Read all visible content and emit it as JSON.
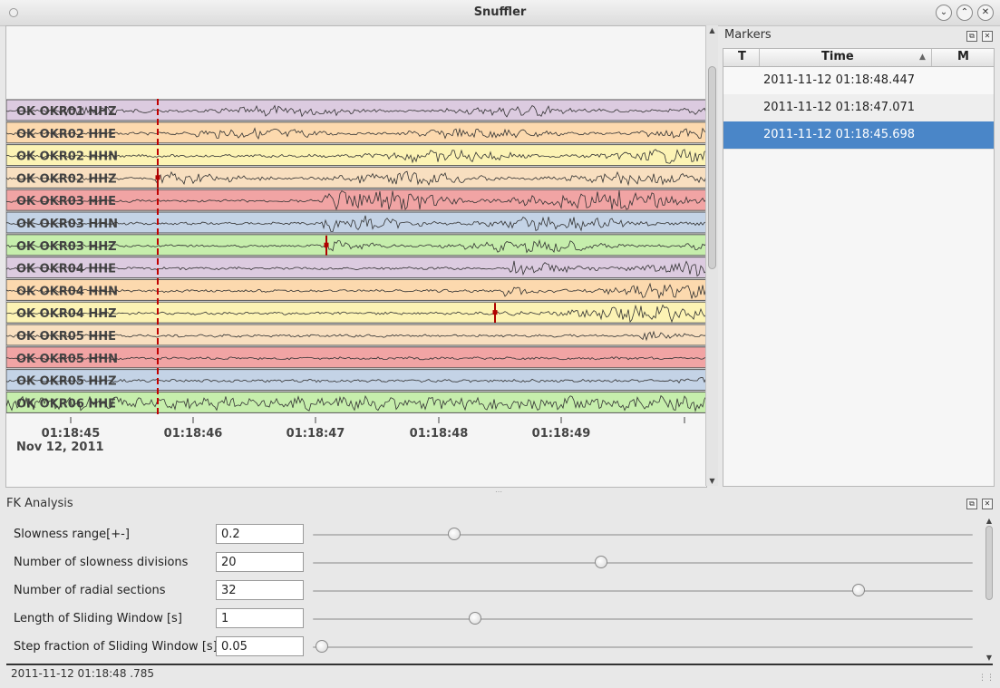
{
  "window": {
    "title": "Snuffler"
  },
  "traces": [
    {
      "label": "OK OKR01  HHZ",
      "color": "#dccbe0"
    },
    {
      "label": "OK OKR02  HHE",
      "color": "#fcd9ae"
    },
    {
      "label": "OK OKR02  HHN",
      "color": "#fcf3b4"
    },
    {
      "label": "OK OKR02  HHZ",
      "color": "#f8dfc0"
    },
    {
      "label": "OK OKR03  HHE",
      "color": "#f1a4a4"
    },
    {
      "label": "OK OKR03  HHN",
      "color": "#c4d3e6"
    },
    {
      "label": "OK OKR03  HHZ",
      "color": "#c6eeac"
    },
    {
      "label": "OK OKR04  HHE",
      "color": "#dccbe0"
    },
    {
      "label": "OK OKR04  HHN",
      "color": "#fcd9ae"
    },
    {
      "label": "OK OKR04  HHZ",
      "color": "#fcf3b4"
    },
    {
      "label": "OK OKR05  HHE",
      "color": "#f8dfc0"
    },
    {
      "label": "OK OKR05  HHN",
      "color": "#f1a4a4"
    },
    {
      "label": "OK OKR05  HHZ",
      "color": "#c4d3e6"
    },
    {
      "label": "OK OKR06  HHE",
      "color": "#c6eeac"
    }
  ],
  "time_axis": {
    "ticks": [
      "01:18:45",
      "01:18:46",
      "01:18:47",
      "01:18:48",
      "01:18:49"
    ],
    "date": "Nov 12, 2011"
  },
  "markers_panel": {
    "title": "Markers",
    "columns": [
      "T",
      "Time",
      "M"
    ],
    "rows": [
      {
        "time": "2011-11-12 01:18:48.447",
        "selected": false
      },
      {
        "time": "2011-11-12 01:18:47.071",
        "selected": false
      },
      {
        "time": "2011-11-12 01:18:45.698",
        "selected": true
      }
    ]
  },
  "fk_panel": {
    "title": "FK Analysis",
    "params": [
      {
        "label": "Slowness range[+-]",
        "value": "0.2",
        "slider": 0.205
      },
      {
        "label": "Number of slowness divisions",
        "value": "20",
        "slider": 0.432
      },
      {
        "label": "Number of radial sections",
        "value": "32",
        "slider": 0.829
      },
      {
        "label": "Length of Sliding Window [s]",
        "value": "1",
        "slider": 0.236
      },
      {
        "label": "Step fraction of Sliding Window [s]",
        "value": "0.05",
        "slider": 0.0
      }
    ]
  },
  "status": {
    "text": "2011-11-12 01:18:48 .785"
  }
}
